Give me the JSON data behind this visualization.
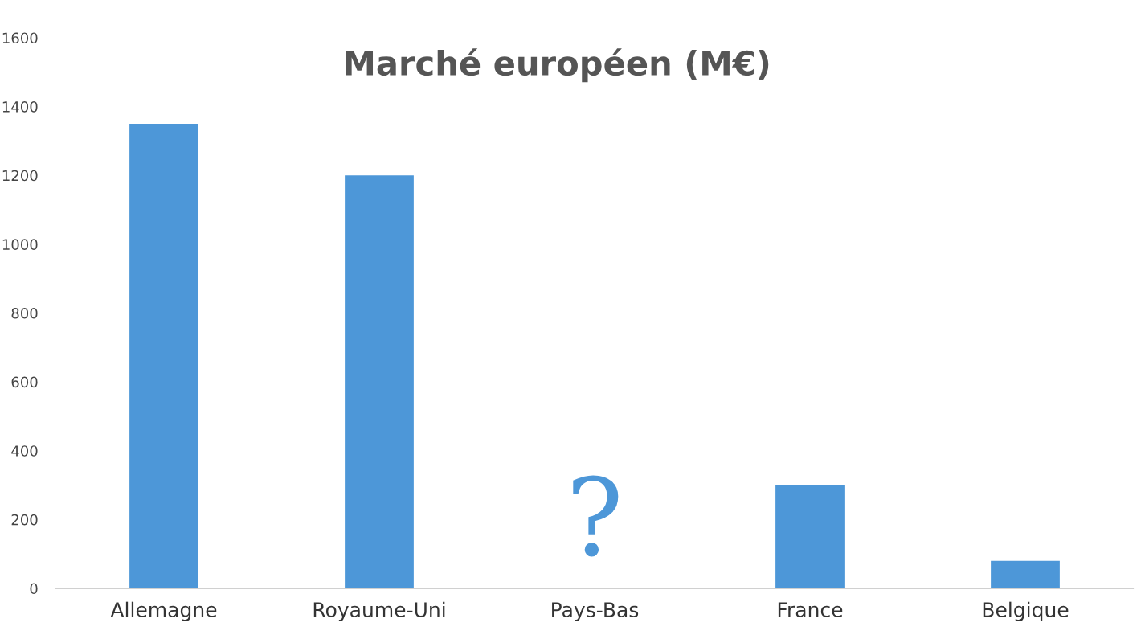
{
  "chart_data": {
    "type": "bar",
    "title": "Marché européen (M€)",
    "categories": [
      "Allemagne",
      "Royaume-Uni",
      "Pays-Bas",
      "France",
      "Belgique"
    ],
    "values": [
      1350,
      1200,
      null,
      300,
      80
    ],
    "color": "#4d97d8",
    "ylim": [
      0,
      1600
    ],
    "yticks": [
      0,
      200,
      400,
      600,
      800,
      1000,
      1200,
      1400,
      1600
    ],
    "grid": false,
    "annotations": [
      "?"
    ]
  }
}
